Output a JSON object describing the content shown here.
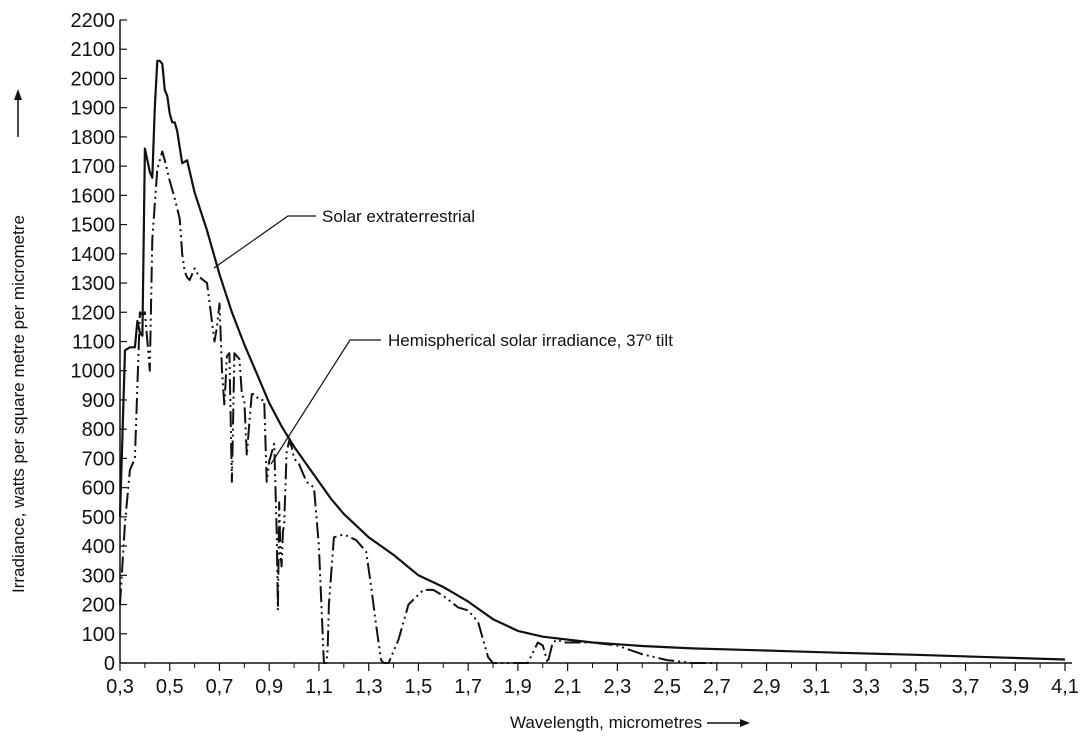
{
  "chart_data": {
    "type": "line",
    "xlabel": "Wavelength, micrometres",
    "ylabel": "Irradiance, watts per square metre per micrometre",
    "xlim": [
      0.3,
      4.1
    ],
    "ylim": [
      0,
      2200
    ],
    "x_ticks": [
      "0,3",
      "0,5",
      "0,7",
      "0,9",
      "1,1",
      "1,3",
      "1,5",
      "1,7",
      "1,9",
      "2,1",
      "2,3",
      "2,5",
      "2,7",
      "2,9",
      "3,1",
      "3,3",
      "3,5",
      "3,7",
      "3,9",
      "4,1"
    ],
    "y_ticks": [
      "0",
      "100",
      "200",
      "300",
      "400",
      "500",
      "600",
      "700",
      "800",
      "900",
      "1000",
      "1100",
      "1200",
      "1300",
      "1400",
      "1500",
      "1600",
      "1700",
      "1800",
      "1900",
      "2000",
      "2100",
      "2200"
    ],
    "grid": false,
    "annotations": [
      {
        "text": "Solar extraterrestrial",
        "series": 0
      },
      {
        "text": "Hemispherical solar irradiance, 37º tilt",
        "series": 1
      }
    ],
    "series": [
      {
        "name": "Solar extraterrestrial",
        "style": "solid",
        "x": [
          0.3,
          0.32,
          0.34,
          0.36,
          0.37,
          0.38,
          0.39,
          0.4,
          0.41,
          0.42,
          0.43,
          0.44,
          0.45,
          0.46,
          0.47,
          0.48,
          0.49,
          0.5,
          0.51,
          0.52,
          0.53,
          0.55,
          0.57,
          0.6,
          0.65,
          0.7,
          0.75,
          0.8,
          0.85,
          0.9,
          0.95,
          1.0,
          1.05,
          1.1,
          1.15,
          1.2,
          1.3,
          1.4,
          1.5,
          1.6,
          1.7,
          1.8,
          1.9,
          2.0,
          2.1,
          2.2,
          2.4,
          2.6,
          2.8,
          3.0,
          3.2,
          3.5,
          3.8,
          4.1
        ],
        "y": [
          500,
          1070,
          1080,
          1080,
          1170,
          1130,
          1120,
          1760,
          1720,
          1680,
          1660,
          1900,
          2060,
          2060,
          2050,
          1960,
          1940,
          1880,
          1850,
          1850,
          1820,
          1710,
          1720,
          1610,
          1480,
          1330,
          1200,
          1090,
          990,
          890,
          810,
          740,
          680,
          620,
          560,
          510,
          430,
          370,
          300,
          260,
          210,
          150,
          110,
          90,
          80,
          70,
          58,
          50,
          45,
          40,
          35,
          28,
          20,
          12
        ]
      },
      {
        "name": "Hemispherical solar irradiance, 37º tilt",
        "style": "dash-dot",
        "x": [
          0.3,
          0.32,
          0.34,
          0.36,
          0.38,
          0.39,
          0.4,
          0.41,
          0.42,
          0.43,
          0.45,
          0.47,
          0.48,
          0.5,
          0.52,
          0.54,
          0.55,
          0.56,
          0.57,
          0.58,
          0.6,
          0.62,
          0.65,
          0.68,
          0.69,
          0.7,
          0.71,
          0.72,
          0.73,
          0.74,
          0.75,
          0.76,
          0.77,
          0.78,
          0.79,
          0.8,
          0.81,
          0.82,
          0.83,
          0.84,
          0.86,
          0.88,
          0.89,
          0.9,
          0.91,
          0.92,
          0.93,
          0.935,
          0.94,
          0.945,
          0.95,
          0.955,
          0.96,
          0.97,
          0.98,
          0.99,
          1.0,
          1.02,
          1.05,
          1.08,
          1.1,
          1.12,
          1.13,
          1.135,
          1.14,
          1.16,
          1.2,
          1.25,
          1.29,
          1.31,
          1.33,
          1.35,
          1.36,
          1.38,
          1.42,
          1.46,
          1.52,
          1.56,
          1.6,
          1.66,
          1.7,
          1.74,
          1.78,
          1.8,
          1.82,
          1.86,
          1.9,
          1.94,
          1.98,
          2.0,
          2.02,
          2.04,
          2.06,
          2.08,
          2.1,
          2.14,
          2.2,
          2.3,
          2.4,
          2.45,
          2.5,
          2.55,
          2.6,
          2.7
        ],
        "y": [
          200,
          480,
          660,
          700,
          1200,
          1190,
          1200,
          1100,
          1000,
          1450,
          1690,
          1750,
          1720,
          1650,
          1590,
          1520,
          1400,
          1340,
          1320,
          1310,
          1350,
          1320,
          1300,
          1100,
          1150,
          1230,
          1000,
          880,
          1050,
          1060,
          620,
          1060,
          1050,
          1040,
          920,
          900,
          710,
          820,
          920,
          920,
          900,
          900,
          620,
          690,
          720,
          750,
          450,
          180,
          550,
          380,
          330,
          450,
          470,
          720,
          760,
          740,
          700,
          680,
          620,
          600,
          400,
          0,
          0,
          50,
          200,
          430,
          440,
          420,
          380,
          260,
          130,
          10,
          0,
          0,
          80,
          200,
          250,
          250,
          230,
          190,
          180,
          140,
          20,
          0,
          0,
          0,
          0,
          0,
          70,
          60,
          0,
          70,
          80,
          70,
          70,
          70,
          70,
          60,
          30,
          20,
          10,
          5,
          0,
          0
        ]
      }
    ]
  }
}
